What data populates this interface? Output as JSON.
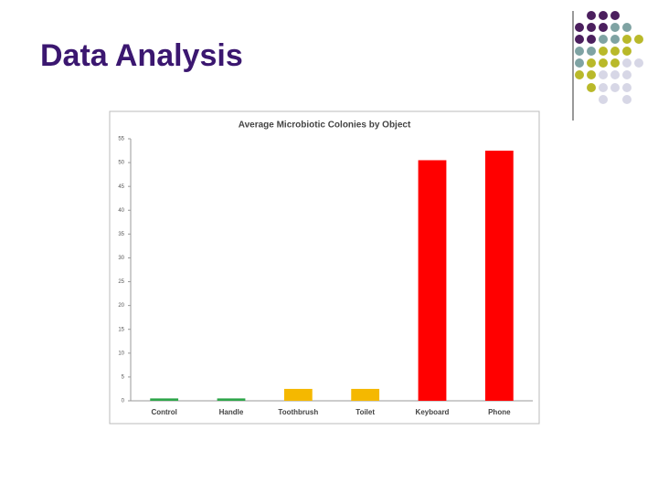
{
  "slide_title": "Data Analysis",
  "chart_data": {
    "type": "bar",
    "title": "Average Microbiotic Colonies by Object",
    "categories": [
      "Control",
      "Handle",
      "Toothbrush",
      "Toilet",
      "Keyboard",
      "Phone"
    ],
    "values": [
      0.5,
      0.5,
      2.5,
      2.5,
      50.5,
      52.5
    ],
    "colors": [
      "#2ea64a",
      "#2ea64a",
      "#f5b800",
      "#f5b800",
      "#ff0000",
      "#ff0000"
    ],
    "ylim": [
      0,
      55
    ],
    "yticks": [
      0,
      5,
      10,
      15,
      20,
      25,
      30,
      35,
      40,
      45,
      50,
      55
    ],
    "grid": false
  }
}
